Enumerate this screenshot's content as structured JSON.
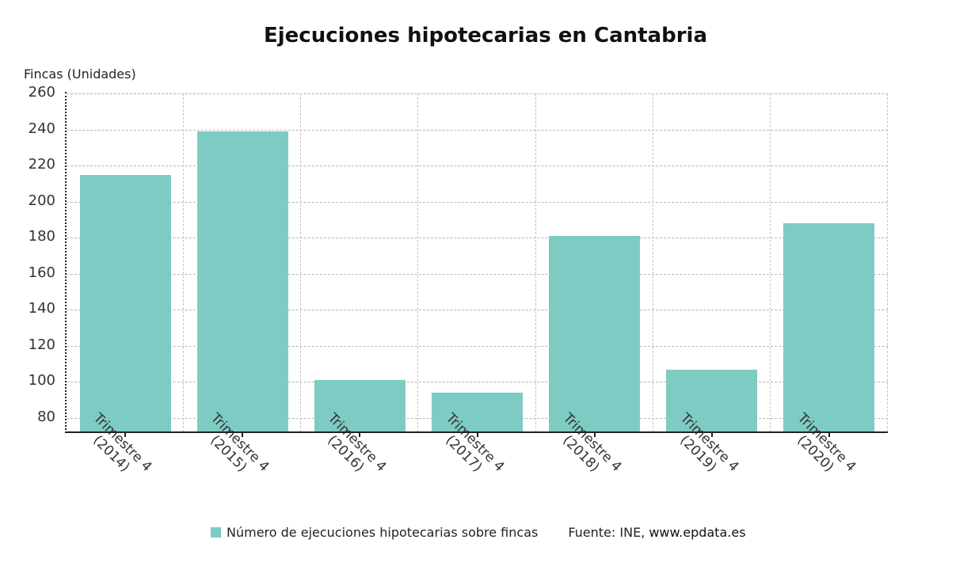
{
  "title": "Ejecuciones hipotecarias en Cantabria",
  "y_axis_label": "Fincas (Unidades)",
  "legend": {
    "label": "Número de ejecuciones hipotecarias sobre fincas",
    "color": "#7ecbc3"
  },
  "source": {
    "prefix": "Fuente: INE, ",
    "site": "www.epdata.es"
  },
  "chart_data": {
    "type": "bar",
    "title": "Ejecuciones hipotecarias en Cantabria",
    "xlabel": "",
    "ylabel": "Fincas (Unidades)",
    "ylim": [
      72,
      260
    ],
    "yticks": [
      80,
      100,
      120,
      140,
      160,
      180,
      200,
      220,
      240,
      260
    ],
    "categories": [
      "Trimestre 4 (2014)",
      "Trimestre 4 (2015)",
      "Trimestre 4 (2016)",
      "Trimestre 4 (2017)",
      "Trimestre 4 (2018)",
      "Trimestre 4 (2019)",
      "Trimestre 4 (2020)"
    ],
    "category_lines": [
      [
        "Trimestre 4",
        "(2014)"
      ],
      [
        "Trimestre 4",
        "(2015)"
      ],
      [
        "Trimestre 4",
        "(2016)"
      ],
      [
        "Trimestre 4",
        "(2017)"
      ],
      [
        "Trimestre 4",
        "(2018)"
      ],
      [
        "Trimestre 4",
        "(2019)"
      ],
      [
        "Trimestre 4",
        "(2020)"
      ]
    ],
    "series": [
      {
        "name": "Número de ejecuciones hipotecarias sobre fincas",
        "color": "#7ecbc3",
        "values": [
          215,
          239,
          101,
          94,
          181,
          107,
          188
        ]
      }
    ],
    "grid": true,
    "legend_position": "bottom",
    "source": "Fuente: INE, www.epdata.es"
  }
}
